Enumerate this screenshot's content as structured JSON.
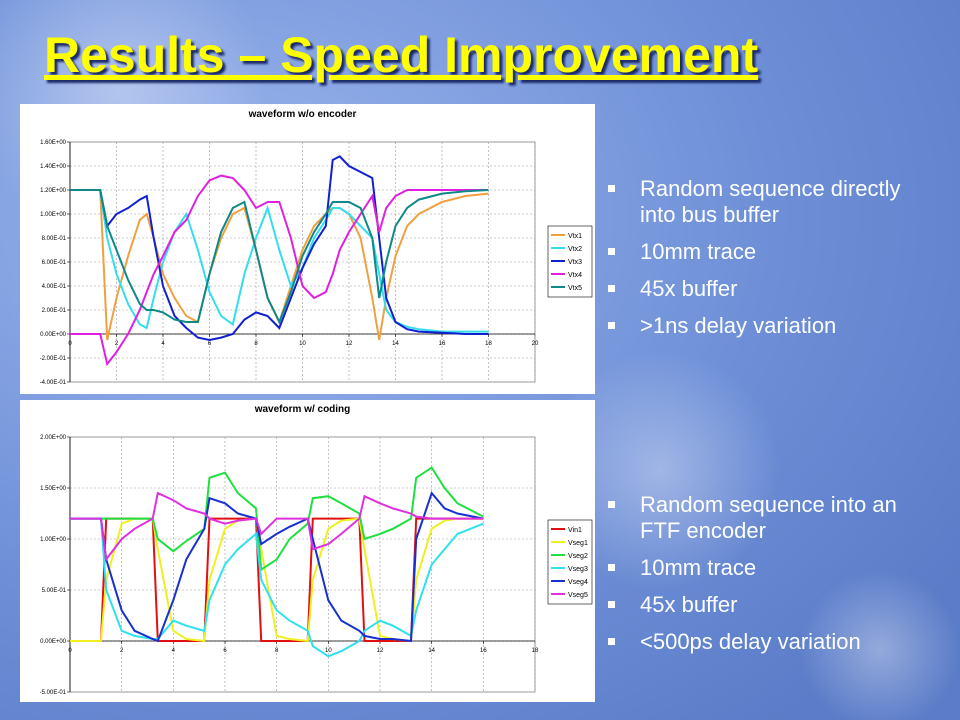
{
  "title": "Results – Speed Improvement",
  "bullets_top": [
    "Random sequence directly into bus buffer",
    "10mm trace",
    "45x buffer",
    ">1ns delay variation"
  ],
  "bullets_bottom": [
    "Random sequence into an FTF encoder",
    "10mm trace",
    "45x buffer",
    "<500ps delay variation"
  ],
  "chart_data": [
    {
      "type": "line",
      "title": "waveform w/o encoder",
      "x": [
        0,
        1,
        1.3,
        1.6,
        2,
        2.5,
        3,
        3.3,
        3.6,
        4,
        4.5,
        5,
        5.5,
        6,
        6.5,
        7,
        7.5,
        8,
        8.5,
        9,
        9.5,
        10,
        10.5,
        11,
        11.3,
        11.6,
        12,
        12.5,
        13,
        13.3,
        13.6,
        14,
        14.5,
        15,
        16,
        17,
        18
      ],
      "series": [
        {
          "name": "Vtx1",
          "color": "#f0a040",
          "values": [
            1.2,
            1.2,
            1.2,
            -0.05,
            0.3,
            0.65,
            0.95,
            1.0,
            0.8,
            0.5,
            0.3,
            0.15,
            0.1,
            0.5,
            0.8,
            1.0,
            1.05,
            0.7,
            0.3,
            0.1,
            0.4,
            0.7,
            0.9,
            1.0,
            1.05,
            1.05,
            1.0,
            0.8,
            0.3,
            -0.05,
            0.3,
            0.65,
            0.9,
            1.0,
            1.1,
            1.15,
            1.17
          ]
        },
        {
          "name": "Vtx2",
          "color": "#33ddee",
          "values": [
            1.2,
            1.2,
            1.2,
            0.8,
            0.5,
            0.25,
            0.08,
            0.05,
            0.3,
            0.6,
            0.85,
            1.0,
            0.7,
            0.35,
            0.15,
            0.08,
            0.5,
            0.8,
            1.05,
            0.7,
            0.4,
            0.55,
            0.8,
            0.95,
            1.05,
            1.05,
            1.0,
            0.9,
            0.8,
            0.5,
            0.2,
            0.1,
            0.06,
            0.04,
            0.02,
            0.02,
            0.02
          ]
        },
        {
          "name": "Vtx3",
          "color": "#1020d0",
          "values": [
            1.2,
            1.2,
            1.2,
            0.9,
            1.0,
            1.05,
            1.12,
            1.15,
            0.8,
            0.4,
            0.15,
            0.05,
            -0.03,
            -0.05,
            -0.03,
            0.0,
            0.12,
            0.18,
            0.15,
            0.05,
            0.3,
            0.55,
            0.75,
            0.9,
            1.45,
            1.48,
            1.4,
            1.35,
            1.3,
            0.8,
            0.3,
            0.1,
            0.04,
            0.02,
            0.01,
            0.0,
            0.0
          ]
        },
        {
          "name": "Vtx4",
          "color": "#e020e0",
          "values": [
            0,
            0,
            0,
            -0.25,
            -0.15,
            0.0,
            0.2,
            0.35,
            0.5,
            0.65,
            0.85,
            0.95,
            1.15,
            1.28,
            1.32,
            1.3,
            1.2,
            1.05,
            1.1,
            1.1,
            0.8,
            0.4,
            0.3,
            0.35,
            0.5,
            0.7,
            0.85,
            1.0,
            1.15,
            0.85,
            1.05,
            1.15,
            1.2,
            1.2,
            1.2,
            1.2,
            1.2
          ]
        },
        {
          "name": "Vtx5",
          "color": "#108888",
          "values": [
            1.2,
            1.2,
            1.2,
            0.9,
            0.7,
            0.45,
            0.25,
            0.2,
            0.2,
            0.18,
            0.12,
            0.1,
            0.1,
            0.5,
            0.85,
            1.05,
            1.1,
            0.7,
            0.3,
            0.1,
            0.35,
            0.65,
            0.85,
            1.0,
            1.1,
            1.1,
            1.1,
            1.05,
            0.8,
            0.3,
            0.6,
            0.9,
            1.05,
            1.12,
            1.17,
            1.19,
            1.2
          ]
        }
      ],
      "xlim": [
        0,
        20
      ],
      "xticks": [
        0,
        2,
        4,
        6,
        8,
        10,
        12,
        14,
        16,
        18,
        20
      ],
      "ylim": [
        -0.4,
        1.6
      ],
      "yticks": [
        {
          "value": -0.4,
          "label": "-4.00E-01"
        },
        {
          "value": -0.2,
          "label": "-2.00E-01"
        },
        {
          "value": 0,
          "label": "0.00E+00"
        },
        {
          "value": 0.2,
          "label": "2.00E-01"
        },
        {
          "value": 0.4,
          "label": "4.00E-01"
        },
        {
          "value": 0.6,
          "label": "6.00E-01"
        },
        {
          "value": 0.8,
          "label": "8.00E-01"
        },
        {
          "value": 1.0,
          "label": "1.00E+00"
        },
        {
          "value": 1.2,
          "label": "1.20E+00"
        },
        {
          "value": 1.4,
          "label": "1.40E+00"
        },
        {
          "value": 1.6,
          "label": "1.60E+00"
        }
      ],
      "grid": true,
      "legend": "right"
    },
    {
      "type": "line",
      "title": "waveform w/ coding",
      "x": [
        0,
        1.2,
        1.4,
        2,
        2.5,
        3.2,
        3.4,
        4,
        4.5,
        5.2,
        5.4,
        6,
        6.5,
        7.2,
        7.4,
        8,
        8.5,
        9.2,
        9.4,
        10,
        10.5,
        11.2,
        11.4,
        12,
        12.5,
        13.2,
        13.4,
        14,
        14.5,
        15,
        16
      ],
      "series": [
        {
          "name": "Vin1",
          "color": "#e01010",
          "values": [
            0,
            0,
            1.2,
            1.2,
            1.2,
            1.2,
            0,
            0,
            0,
            0,
            1.2,
            1.2,
            1.2,
            1.2,
            0,
            0,
            0,
            0,
            1.2,
            1.2,
            1.2,
            1.2,
            0,
            0,
            0,
            0,
            1.2,
            1.2,
            1.2,
            1.2,
            1.2
          ]
        },
        {
          "name": "Vseg1",
          "color": "#f0f020",
          "values": [
            0,
            0,
            0.6,
            1.15,
            1.2,
            1.2,
            0.9,
            0.1,
            0.02,
            0,
            0.6,
            1.1,
            1.18,
            1.2,
            0.9,
            0.05,
            0.02,
            0,
            0.6,
            1.1,
            1.18,
            1.2,
            0.9,
            0.05,
            0.02,
            0,
            0.6,
            1.1,
            1.18,
            1.2,
            1.2
          ]
        },
        {
          "name": "Vseg2",
          "color": "#20e040",
          "values": [
            1.2,
            1.2,
            1.2,
            1.2,
            1.2,
            1.2,
            1.0,
            0.88,
            0.98,
            1.1,
            1.6,
            1.65,
            1.45,
            1.3,
            0.7,
            0.8,
            1.0,
            1.15,
            1.4,
            1.42,
            1.35,
            1.25,
            1.0,
            1.05,
            1.1,
            1.2,
            1.6,
            1.7,
            1.5,
            1.35,
            1.22
          ]
        },
        {
          "name": "Vseg3",
          "color": "#30e0f0",
          "values": [
            1.2,
            1.2,
            0.5,
            0.1,
            0.05,
            0.02,
            0.02,
            0.2,
            0.15,
            0.1,
            0.4,
            0.75,
            0.9,
            1.05,
            0.6,
            0.3,
            0.2,
            0.1,
            -0.05,
            -0.15,
            -0.1,
            0.0,
            0.1,
            0.2,
            0.15,
            0.05,
            0.3,
            0.75,
            0.9,
            1.05,
            1.15
          ]
        },
        {
          "name": "Vseg4",
          "color": "#1830d0",
          "values": [
            1.2,
            1.2,
            0.8,
            0.3,
            0.1,
            0.02,
            0.0,
            0.4,
            0.8,
            1.1,
            1.4,
            1.35,
            1.25,
            1.2,
            0.95,
            1.05,
            1.12,
            1.2,
            1.0,
            0.4,
            0.2,
            0.1,
            0.05,
            0.02,
            0.02,
            0.0,
            1.0,
            1.45,
            1.3,
            1.25,
            1.2
          ]
        },
        {
          "name": "Vseg5",
          "color": "#e030e0",
          "values": [
            1.2,
            1.2,
            0.8,
            1.0,
            1.1,
            1.2,
            1.45,
            1.38,
            1.3,
            1.25,
            1.2,
            1.15,
            1.18,
            1.2,
            1.05,
            1.2,
            1.2,
            1.2,
            0.9,
            0.95,
            1.05,
            1.2,
            1.42,
            1.35,
            1.3,
            1.25,
            1.22,
            1.2,
            1.2,
            1.2,
            1.2
          ]
        }
      ],
      "xlim": [
        0,
        18
      ],
      "xticks": [
        0,
        2,
        4,
        6,
        8,
        10,
        12,
        14,
        16,
        18
      ],
      "ylim": [
        -0.5,
        2.0
      ],
      "yticks": [
        {
          "value": -0.5,
          "label": "-5.00E-01"
        },
        {
          "value": 0,
          "label": "0.00E+00"
        },
        {
          "value": 0.5,
          "label": "5.00E-01"
        },
        {
          "value": 1.0,
          "label": "1.00E+00"
        },
        {
          "value": 1.5,
          "label": "1.50E+00"
        },
        {
          "value": 2.0,
          "label": "2.00E+00"
        }
      ],
      "grid": true,
      "legend": "right"
    }
  ]
}
